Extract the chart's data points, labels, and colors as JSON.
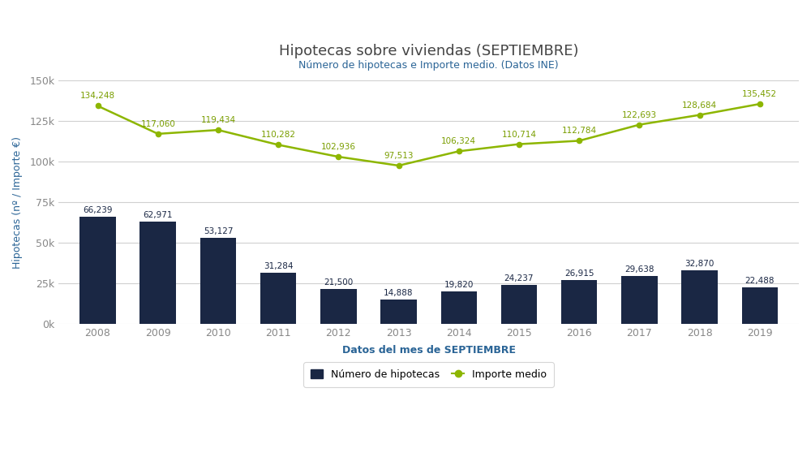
{
  "title": "Hipotecas sobre viviendas (SEPTIEMBRE)",
  "subtitle": "Número de hipotecas e Importe medio. (Datos INE)",
  "xlabel": "Datos del mes de SEPTIEMBRE",
  "ylabel": "Hipotecas (nº / Importe €)",
  "years": [
    2008,
    2009,
    2010,
    2011,
    2012,
    2013,
    2014,
    2015,
    2016,
    2017,
    2018,
    2019
  ],
  "bar_values": [
    66239,
    62971,
    53127,
    31284,
    21500,
    14888,
    19820,
    24237,
    26915,
    29638,
    32870,
    22488
  ],
  "line_values": [
    134248,
    117060,
    119434,
    110282,
    102936,
    97513,
    106324,
    110714,
    112784,
    122693,
    128684,
    135452
  ],
  "bar_color": "#1a2744",
  "line_color": "#8db600",
  "background_color": "#ffffff",
  "grid_color": "#d0d0d0",
  "ylim": [
    0,
    150000
  ],
  "yticks": [
    0,
    25000,
    50000,
    75000,
    100000,
    125000,
    150000
  ],
  "ytick_labels": [
    "0k",
    "25k",
    "50k",
    "75k",
    "100k",
    "125k",
    "150k"
  ],
  "title_fontsize": 13,
  "subtitle_fontsize": 9,
  "xlabel_fontsize": 9,
  "ylabel_fontsize": 9,
  "legend_label_bar": "Número de hipotecas",
  "legend_label_line": "Importe medio",
  "title_color": "#444444",
  "subtitle_color": "#2a6496",
  "xlabel_color": "#2a6496",
  "ylabel_color": "#2a6496",
  "tick_color": "#888888",
  "annotation_fontsize": 7.5,
  "annotation_color_bar": "#1a2744",
  "annotation_color_line": "#7a9e00"
}
